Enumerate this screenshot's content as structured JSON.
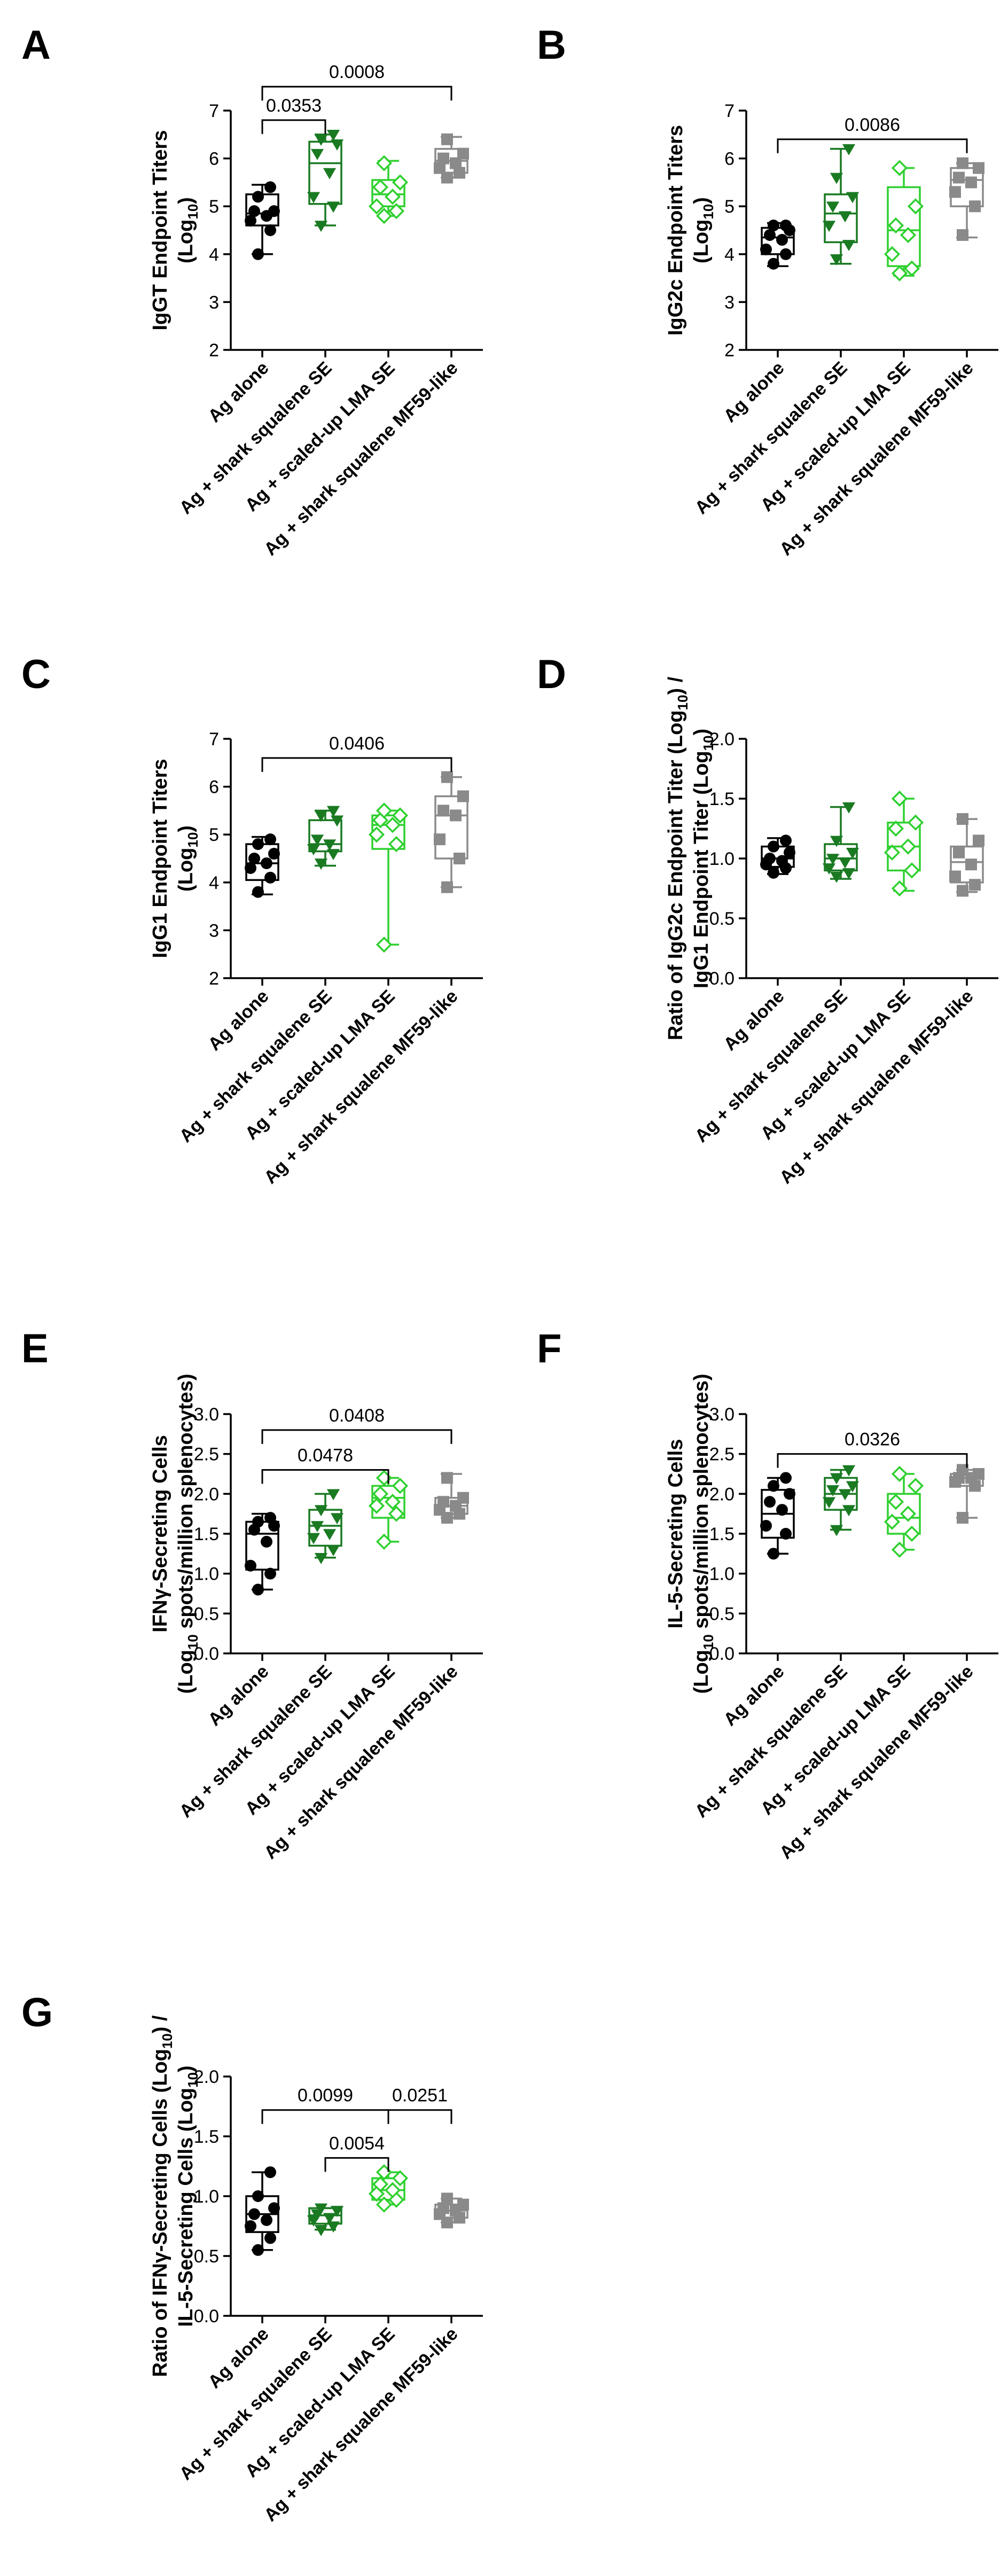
{
  "figure": {
    "colors": {
      "group1": "#000000",
      "group2": "#1a7a22",
      "group3": "#2fd02f",
      "group4": "#8a8a8a"
    }
  },
  "chart_data": [
    {
      "panel": "A",
      "type": "box",
      "categories": [
        "Ag alone",
        "Ag + shark squalene SE",
        "Ag + scaled-up LMA SE",
        "Ag + shark squalene MF59-like"
      ],
      "ylabel_main": "IgGT Endpoint Titers",
      "ylabel_sub_pre": "(Log",
      "ylabel_sub_sub": "10",
      "ylabel_sub_post": ")",
      "ylim": [
        2,
        7
      ],
      "yticks": [
        "2",
        "3",
        "4",
        "5",
        "6",
        "7"
      ],
      "series": [
        {
          "name": "Ag alone",
          "marker": "circle",
          "points": [
            4.0,
            4.5,
            4.7,
            4.8,
            4.9,
            4.9,
            5.2,
            5.4
          ],
          "box": [
            4.0,
            4.6,
            4.85,
            5.25,
            5.45
          ]
        },
        {
          "name": "Ag + shark squalene SE",
          "marker": "triangle-down",
          "points": [
            4.6,
            5.0,
            5.2,
            5.7,
            6.1,
            6.3,
            6.4,
            6.5
          ],
          "box": [
            4.6,
            5.05,
            5.9,
            6.35,
            6.5
          ]
        },
        {
          "name": "Ag + scaled-up LMA SE",
          "marker": "diamond-open",
          "points": [
            4.8,
            4.9,
            5.0,
            5.2,
            5.4,
            5.5,
            5.9
          ],
          "box": [
            4.8,
            5.0,
            5.25,
            5.55,
            5.95
          ]
        },
        {
          "name": "Ag + shark squalene MF59-like",
          "marker": "square",
          "points": [
            5.6,
            5.7,
            5.8,
            5.9,
            6.0,
            6.1,
            6.4
          ],
          "box": [
            5.6,
            5.7,
            5.95,
            6.2,
            6.45
          ]
        }
      ],
      "comparisons": [
        {
          "from": 0,
          "to": 1,
          "label": "0.0353",
          "y": 6.8
        },
        {
          "from": 0,
          "to": 3,
          "label": "0.0008",
          "y": 7.5
        }
      ]
    },
    {
      "panel": "B",
      "type": "box",
      "categories": [
        "Ag alone",
        "Ag + shark squalene SE",
        "Ag + scaled-up LMA SE",
        "Ag + shark squalene MF59-like"
      ],
      "ylabel_main": "IgG2c Endpoint Titers",
      "ylabel_sub_pre": "(Log",
      "ylabel_sub_sub": "10",
      "ylabel_sub_post": ")",
      "ylim": [
        2,
        7
      ],
      "yticks": [
        "2",
        "3",
        "4",
        "5",
        "6",
        "7"
      ],
      "series": [
        {
          "name": "Ag alone",
          "marker": "circle",
          "points": [
            3.8,
            4.0,
            4.1,
            4.3,
            4.4,
            4.5,
            4.6,
            4.6
          ],
          "box": [
            3.75,
            4.0,
            4.35,
            4.55,
            4.65
          ]
        },
        {
          "name": "Ag + shark squalene SE",
          "marker": "triangle-down",
          "points": [
            3.9,
            4.2,
            4.6,
            4.8,
            5.0,
            5.2,
            5.6,
            6.2
          ],
          "box": [
            3.8,
            4.25,
            4.85,
            5.25,
            6.2
          ]
        },
        {
          "name": "Ag + scaled-up LMA SE",
          "marker": "diamond-open",
          "points": [
            3.6,
            3.7,
            4.0,
            4.4,
            4.6,
            5.0,
            5.8
          ],
          "box": [
            3.55,
            3.75,
            4.5,
            5.4,
            5.8
          ]
        },
        {
          "name": "Ag + shark squalene MF59-like",
          "marker": "square",
          "points": [
            4.4,
            5.0,
            5.3,
            5.5,
            5.6,
            5.8,
            5.9
          ],
          "box": [
            4.35,
            5.0,
            5.55,
            5.8,
            5.9
          ]
        }
      ],
      "comparisons": [
        {
          "from": 0,
          "to": 3,
          "label": "0.0086",
          "y": 6.4
        }
      ]
    },
    {
      "panel": "C",
      "type": "box",
      "categories": [
        "Ag alone",
        "Ag + shark squalene SE",
        "Ag + scaled-up LMA SE",
        "Ag + shark squalene MF59-like"
      ],
      "ylabel_main": "IgG1 Endpoint Titers",
      "ylabel_sub_pre": "(Log",
      "ylabel_sub_sub": "10",
      "ylabel_sub_post": ")",
      "ylim": [
        2,
        7
      ],
      "yticks": [
        "2",
        "3",
        "4",
        "5",
        "6",
        "7"
      ],
      "series": [
        {
          "name": "Ag alone",
          "marker": "circle",
          "points": [
            3.8,
            4.1,
            4.3,
            4.4,
            4.5,
            4.6,
            4.8,
            4.9
          ],
          "box": [
            3.75,
            4.05,
            4.4,
            4.8,
            4.95
          ]
        },
        {
          "name": "Ag + shark squalene SE",
          "marker": "triangle-down",
          "points": [
            4.4,
            4.6,
            4.7,
            4.8,
            4.9,
            5.3,
            5.4,
            5.5
          ],
          "box": [
            4.35,
            4.65,
            4.8,
            5.3,
            5.5
          ]
        },
        {
          "name": "Ag + scaled-up LMA SE",
          "marker": "diamond-open",
          "points": [
            2.7,
            4.8,
            5.0,
            5.2,
            5.3,
            5.4,
            5.5
          ],
          "box": [
            2.7,
            4.7,
            5.2,
            5.4,
            5.5
          ]
        },
        {
          "name": "Ag + shark squalene MF59-like",
          "marker": "square",
          "points": [
            3.9,
            4.5,
            4.9,
            5.4,
            5.5,
            5.8,
            6.2
          ],
          "box": [
            3.9,
            4.5,
            5.4,
            5.8,
            6.2
          ]
        }
      ],
      "comparisons": [
        {
          "from": 0,
          "to": 3,
          "label": "0.0406",
          "y": 6.6
        }
      ]
    },
    {
      "panel": "D",
      "type": "box",
      "categories": [
        "Ag alone",
        "Ag + shark squalene SE",
        "Ag + scaled-up LMA SE",
        "Ag + shark squalene MF59-like"
      ],
      "ylabel_main_parts": [
        {
          "t": "Ratio of IgG2c Endpoint Titer (Log"
        },
        {
          "t": "10",
          "sub": true
        },
        {
          "t": ") /"
        }
      ],
      "ylabel_sub_pre": "IgG1 Endpoint Titer (Log",
      "ylabel_sub_sub": "10",
      "ylabel_sub_post": ")",
      "ylim": [
        0,
        2.0
      ],
      "yticks": [
        "0.0",
        "0.5",
        "1.0",
        "1.5",
        "2.0"
      ],
      "series": [
        {
          "name": "Ag alone",
          "marker": "circle",
          "points": [
            0.88,
            0.92,
            0.95,
            0.98,
            1.0,
            1.05,
            1.1,
            1.15
          ],
          "box": [
            0.87,
            0.93,
            1.0,
            1.1,
            1.17
          ]
        },
        {
          "name": "Ag + shark squalene SE",
          "marker": "triangle-down",
          "points": [
            0.85,
            0.88,
            0.92,
            0.97,
            1.0,
            1.05,
            1.15,
            1.43
          ],
          "box": [
            0.83,
            0.9,
            1.0,
            1.12,
            1.43
          ]
        },
        {
          "name": "Ag + scaled-up LMA SE",
          "marker": "diamond-open",
          "points": [
            0.75,
            0.9,
            1.05,
            1.1,
            1.25,
            1.3,
            1.5
          ],
          "box": [
            0.73,
            0.9,
            1.1,
            1.3,
            1.5
          ]
        },
        {
          "name": "Ag + shark squalene MF59-like",
          "marker": "square",
          "points": [
            0.73,
            0.78,
            0.85,
            0.95,
            1.05,
            1.15,
            1.33
          ],
          "box": [
            0.72,
            0.8,
            0.97,
            1.1,
            1.33
          ]
        }
      ],
      "comparisons": []
    },
    {
      "panel": "E",
      "type": "box",
      "categories": [
        "Ag alone",
        "Ag + shark squalene SE",
        "Ag + scaled-up LMA SE",
        "Ag + shark squalene MF59-like"
      ],
      "ylabel_main": "IFNγ-Secreting Cells",
      "ylabel_sub_pre": "(Log",
      "ylabel_sub_sub": "10",
      "ylabel_sub_post": " spots/million splenocytes)",
      "ylim": [
        0,
        3.0
      ],
      "yticks": [
        "0.0",
        "0.5",
        "1.0",
        "1.5",
        "2.0",
        "2.5",
        "3.0"
      ],
      "series": [
        {
          "name": "Ag alone",
          "marker": "circle",
          "points": [
            0.8,
            1.0,
            1.1,
            1.4,
            1.55,
            1.6,
            1.65,
            1.7
          ],
          "box": [
            0.8,
            1.05,
            1.5,
            1.65,
            1.75
          ]
        },
        {
          "name": "Ag + shark squalene SE",
          "marker": "triangle-down",
          "points": [
            1.2,
            1.3,
            1.45,
            1.5,
            1.6,
            1.7,
            1.8,
            2.0
          ],
          "box": [
            1.2,
            1.35,
            1.6,
            1.8,
            2.0
          ]
        },
        {
          "name": "Ag + scaled-up LMA SE",
          "marker": "diamond-open",
          "points": [
            1.4,
            1.75,
            1.85,
            1.9,
            2.0,
            2.1,
            2.2
          ],
          "box": [
            1.4,
            1.7,
            1.95,
            2.1,
            2.2
          ]
        },
        {
          "name": "Ag + shark squalene MF59-like",
          "marker": "square",
          "points": [
            1.7,
            1.75,
            1.8,
            1.85,
            1.9,
            1.95,
            2.2
          ],
          "box": [
            1.7,
            1.75,
            1.85,
            1.95,
            2.25
          ]
        }
      ],
      "comparisons": [
        {
          "from": 0,
          "to": 2,
          "label": "0.0478",
          "y": 2.3
        },
        {
          "from": 0,
          "to": 3,
          "label": "0.0408",
          "y": 2.8
        }
      ]
    },
    {
      "panel": "F",
      "type": "box",
      "categories": [
        "Ag alone",
        "Ag + shark squalene SE",
        "Ag + scaled-up LMA SE",
        "Ag + shark squalene MF59-like"
      ],
      "ylabel_main": "IL-5-Secreting Cells",
      "ylabel_sub_pre": "(Log",
      "ylabel_sub_sub": "10",
      "ylabel_sub_post": " spots/million splenocytes)",
      "ylim": [
        0,
        3.0
      ],
      "yticks": [
        "0.0",
        "0.5",
        "1.0",
        "1.5",
        "2.0",
        "2.5",
        "3.0"
      ],
      "series": [
        {
          "name": "Ag alone",
          "marker": "circle",
          "points": [
            1.25,
            1.5,
            1.6,
            1.8,
            1.9,
            2.0,
            2.1,
            2.2
          ],
          "box": [
            1.25,
            1.45,
            1.75,
            2.05,
            2.2
          ]
        },
        {
          "name": "Ag + shark squalene SE",
          "marker": "triangle-down",
          "points": [
            1.55,
            1.8,
            1.9,
            2.0,
            2.05,
            2.1,
            2.2,
            2.3
          ],
          "box": [
            1.55,
            1.8,
            2.0,
            2.2,
            2.3
          ]
        },
        {
          "name": "Ag + scaled-up LMA SE",
          "marker": "diamond-open",
          "points": [
            1.3,
            1.5,
            1.65,
            1.75,
            1.9,
            2.1,
            2.25
          ],
          "box": [
            1.3,
            1.5,
            1.7,
            2.0,
            2.25
          ]
        },
        {
          "name": "Ag + shark squalene MF59-like",
          "marker": "square",
          "points": [
            1.7,
            2.1,
            2.15,
            2.2,
            2.2,
            2.25,
            2.3
          ],
          "box": [
            1.7,
            2.1,
            2.2,
            2.25,
            2.3
          ]
        }
      ],
      "comparisons": [
        {
          "from": 0,
          "to": 3,
          "label": "0.0326",
          "y": 2.5
        }
      ]
    },
    {
      "panel": "G",
      "type": "box",
      "categories": [
        "Ag alone",
        "Ag + shark squalene SE",
        "Ag + scaled-up LMA SE",
        "Ag + shark squalene MF59-like"
      ],
      "ylabel_main_parts": [
        {
          "t": "Ratio of IFNγ-Secreting Cells (Log"
        },
        {
          "t": "10",
          "sub": true
        },
        {
          "t": ") /"
        }
      ],
      "ylabel_sub_pre": "IL-5-Secreting Cells (Log",
      "ylabel_sub_sub": "10",
      "ylabel_sub_post": ")",
      "ylim": [
        0,
        2.0
      ],
      "yticks": [
        "0.0",
        "0.5",
        "1.0",
        "1.5",
        "2.0"
      ],
      "series": [
        {
          "name": "Ag alone",
          "marker": "circle",
          "points": [
            0.55,
            0.65,
            0.75,
            0.8,
            0.85,
            0.9,
            1.0,
            1.2
          ],
          "box": [
            0.55,
            0.7,
            0.85,
            1.0,
            1.2
          ]
        },
        {
          "name": "Ag + shark squalene SE",
          "marker": "triangle-down",
          "points": [
            0.72,
            0.75,
            0.8,
            0.82,
            0.85,
            0.88,
            0.9
          ],
          "box": [
            0.72,
            0.77,
            0.84,
            0.9,
            0.9
          ]
        },
        {
          "name": "Ag + scaled-up LMA SE",
          "marker": "diamond-open",
          "points": [
            0.93,
            0.97,
            1.02,
            1.05,
            1.1,
            1.15,
            1.2
          ],
          "box": [
            0.93,
            0.97,
            1.05,
            1.15,
            1.2
          ]
        },
        {
          "name": "Ag + shark squalene MF59-like",
          "marker": "square",
          "points": [
            0.78,
            0.82,
            0.85,
            0.88,
            0.9,
            0.93,
            0.98
          ],
          "box": [
            0.78,
            0.82,
            0.88,
            0.93,
            0.98
          ]
        }
      ],
      "comparisons": [
        {
          "from": 1,
          "to": 2,
          "label": "0.0054",
          "y": 1.32
        },
        {
          "from": 0,
          "to": 2,
          "label": "0.0099",
          "y": 1.72
        },
        {
          "from": 2,
          "to": 3,
          "label": "0.0251",
          "y": 1.72
        }
      ]
    }
  ]
}
